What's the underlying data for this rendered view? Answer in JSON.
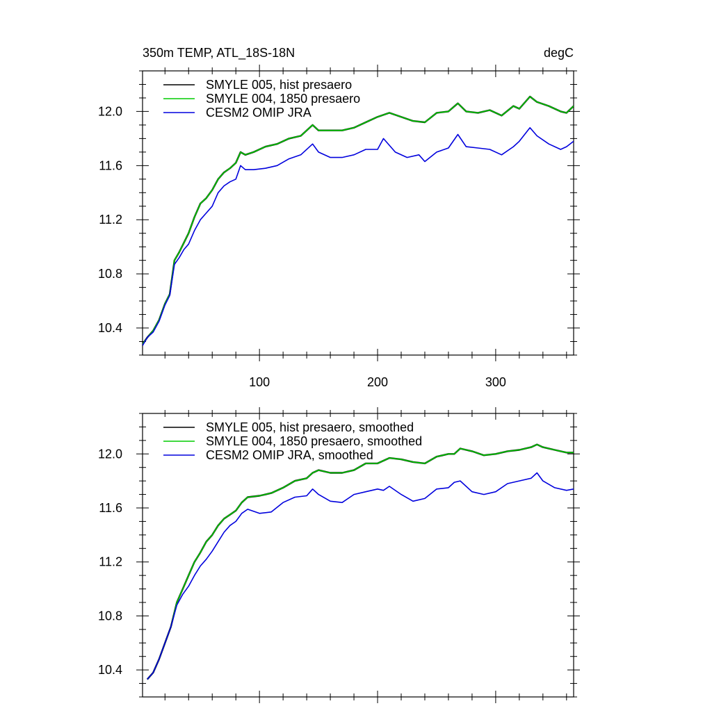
{
  "colors": {
    "smyle005": "#000000",
    "smyle004": "#00cc00",
    "omip": "#0000dd",
    "axis": "#000000"
  },
  "chart_data": [
    {
      "type": "line",
      "title": "350m TEMP, ATL_18S-18N",
      "units": "degC",
      "xlim": [
        1,
        366
      ],
      "ylim": [
        10.2,
        12.3
      ],
      "x_major_ticks": [
        100,
        200,
        300
      ],
      "x_minor_step": 20,
      "y_major_ticks": [
        10.4,
        10.8,
        11.2,
        11.6,
        12.0
      ],
      "y_tick_labels": [
        "10.4",
        "10.8",
        "11.2",
        "11.6",
        "12.0"
      ],
      "y_minor_step": 0.1,
      "x_tick_labels": [
        "100",
        "200",
        "300"
      ],
      "grid": false,
      "legend_position": "top-left",
      "series": [
        {
          "name": "SMYLE 005, hist presaero",
          "color_key": "smyle005",
          "x": [
            1,
            5,
            10,
            15,
            20,
            24,
            28,
            32,
            36,
            40,
            45,
            50,
            55,
            60,
            65,
            70,
            75,
            80,
            84,
            88,
            95,
            105,
            115,
            125,
            135,
            145,
            150,
            160,
            170,
            180,
            190,
            200,
            210,
            220,
            230,
            240,
            250,
            260,
            268,
            275,
            285,
            295,
            305,
            315,
            320,
            329,
            335,
            345,
            355,
            360,
            366
          ],
          "y": [
            10.28,
            10.33,
            10.38,
            10.46,
            10.58,
            10.65,
            10.9,
            10.96,
            11.03,
            11.1,
            11.22,
            11.32,
            11.36,
            11.42,
            11.5,
            11.55,
            11.58,
            11.62,
            11.7,
            11.68,
            11.7,
            11.74,
            11.76,
            11.8,
            11.82,
            11.9,
            11.86,
            11.86,
            11.86,
            11.88,
            11.92,
            11.96,
            11.99,
            11.96,
            11.93,
            11.92,
            11.99,
            12.0,
            12.06,
            12.0,
            11.99,
            12.01,
            11.97,
            12.04,
            12.02,
            12.11,
            12.07,
            12.04,
            12.0,
            11.99,
            12.04
          ]
        },
        {
          "name": "SMYLE 004, 1850 presaero",
          "color_key": "smyle004",
          "x": [
            1,
            5,
            10,
            15,
            20,
            24,
            28,
            32,
            36,
            40,
            45,
            50,
            55,
            60,
            65,
            70,
            75,
            80,
            84,
            88,
            95,
            105,
            115,
            125,
            135,
            145,
            150,
            160,
            170,
            180,
            190,
            200,
            210,
            220,
            230,
            240,
            250,
            260,
            268,
            275,
            285,
            295,
            305,
            315,
            320,
            329,
            335,
            345,
            355,
            360,
            366
          ],
          "y": [
            10.28,
            10.33,
            10.38,
            10.46,
            10.58,
            10.65,
            10.9,
            10.96,
            11.03,
            11.1,
            11.22,
            11.32,
            11.36,
            11.42,
            11.5,
            11.55,
            11.58,
            11.62,
            11.7,
            11.68,
            11.7,
            11.74,
            11.76,
            11.8,
            11.82,
            11.9,
            11.86,
            11.86,
            11.86,
            11.88,
            11.92,
            11.96,
            11.99,
            11.96,
            11.93,
            11.92,
            11.99,
            12.0,
            12.06,
            12.0,
            11.99,
            12.01,
            11.97,
            12.04,
            12.02,
            12.11,
            12.07,
            12.04,
            12.0,
            11.99,
            12.04
          ]
        },
        {
          "name": "CESM2 OMIP JRA",
          "color_key": "omip",
          "x": [
            1,
            5,
            10,
            15,
            20,
            24,
            28,
            32,
            36,
            40,
            45,
            50,
            55,
            60,
            65,
            70,
            75,
            80,
            84,
            88,
            95,
            105,
            115,
            125,
            135,
            145,
            150,
            160,
            170,
            180,
            190,
            200,
            205,
            215,
            225,
            235,
            240,
            250,
            260,
            268,
            275,
            285,
            295,
            305,
            315,
            320,
            329,
            335,
            345,
            355,
            360,
            366
          ],
          "y": [
            10.27,
            10.33,
            10.37,
            10.45,
            10.57,
            10.64,
            10.87,
            10.92,
            10.98,
            11.02,
            11.12,
            11.2,
            11.25,
            11.3,
            11.4,
            11.45,
            11.48,
            11.5,
            11.6,
            11.57,
            11.57,
            11.58,
            11.6,
            11.65,
            11.68,
            11.76,
            11.7,
            11.66,
            11.66,
            11.68,
            11.72,
            11.72,
            11.8,
            11.7,
            11.66,
            11.68,
            11.63,
            11.7,
            11.73,
            11.83,
            11.74,
            11.73,
            11.72,
            11.68,
            11.74,
            11.78,
            11.88,
            11.82,
            11.76,
            11.72,
            11.74,
            11.78
          ]
        }
      ]
    },
    {
      "type": "line",
      "title": "",
      "xlim": [
        1,
        366
      ],
      "ylim": [
        10.2,
        12.3
      ],
      "x_major_ticks": [
        100,
        200,
        300
      ],
      "x_minor_step": 20,
      "y_major_ticks": [
        10.4,
        10.8,
        11.2,
        11.6,
        12.0
      ],
      "y_tick_labels": [
        "10.4",
        "10.8",
        "11.2",
        "11.6",
        "12.0"
      ],
      "y_minor_step": 0.1,
      "grid": false,
      "legend_position": "top-left",
      "series": [
        {
          "name": "SMYLE 005, hist presaero, smoothed",
          "color_key": "smyle005",
          "x": [
            5,
            10,
            15,
            20,
            25,
            30,
            35,
            40,
            45,
            50,
            55,
            60,
            65,
            70,
            75,
            80,
            85,
            90,
            100,
            110,
            120,
            130,
            140,
            145,
            150,
            160,
            170,
            180,
            190,
            200,
            210,
            220,
            230,
            240,
            250,
            260,
            265,
            270,
            280,
            290,
            300,
            310,
            320,
            330,
            335,
            340,
            350,
            360,
            366
          ],
          "y": [
            10.33,
            10.38,
            10.48,
            10.6,
            10.72,
            10.9,
            11.0,
            11.1,
            11.2,
            11.27,
            11.35,
            11.4,
            11.47,
            11.52,
            11.55,
            11.58,
            11.64,
            11.68,
            11.69,
            11.71,
            11.75,
            11.8,
            11.82,
            11.86,
            11.88,
            11.86,
            11.86,
            11.88,
            11.93,
            11.93,
            11.97,
            11.96,
            11.94,
            11.93,
            11.98,
            12.0,
            12.0,
            12.04,
            12.02,
            11.99,
            12.0,
            12.02,
            12.03,
            12.05,
            12.07,
            12.05,
            12.03,
            12.01,
            12.01
          ]
        },
        {
          "name": "SMYLE 004, 1850 presaero, smoothed",
          "color_key": "smyle004",
          "x": [
            5,
            10,
            15,
            20,
            25,
            30,
            35,
            40,
            45,
            50,
            55,
            60,
            65,
            70,
            75,
            80,
            85,
            90,
            100,
            110,
            120,
            130,
            140,
            145,
            150,
            160,
            170,
            180,
            190,
            200,
            210,
            220,
            230,
            240,
            250,
            260,
            265,
            270,
            280,
            290,
            300,
            310,
            320,
            330,
            335,
            340,
            350,
            360,
            366
          ],
          "y": [
            10.33,
            10.38,
            10.48,
            10.6,
            10.72,
            10.9,
            11.0,
            11.1,
            11.2,
            11.27,
            11.35,
            11.4,
            11.47,
            11.52,
            11.55,
            11.58,
            11.64,
            11.68,
            11.69,
            11.71,
            11.75,
            11.8,
            11.82,
            11.86,
            11.88,
            11.86,
            11.86,
            11.88,
            11.93,
            11.93,
            11.97,
            11.96,
            11.94,
            11.93,
            11.98,
            12.0,
            12.0,
            12.04,
            12.02,
            11.99,
            12.0,
            12.02,
            12.03,
            12.05,
            12.07,
            12.05,
            12.03,
            12.01,
            12.01
          ]
        },
        {
          "name": "CESM2 OMIP JRA, smoothed",
          "color_key": "omip",
          "x": [
            5,
            10,
            15,
            20,
            25,
            30,
            35,
            40,
            45,
            50,
            55,
            60,
            65,
            70,
            75,
            80,
            85,
            90,
            100,
            110,
            120,
            130,
            140,
            145,
            150,
            160,
            170,
            180,
            190,
            200,
            205,
            210,
            220,
            230,
            240,
            250,
            260,
            265,
            270,
            280,
            290,
            300,
            310,
            320,
            330,
            335,
            340,
            350,
            360,
            366
          ],
          "y": [
            10.33,
            10.38,
            10.48,
            10.6,
            10.72,
            10.88,
            10.96,
            11.02,
            11.1,
            11.17,
            11.22,
            11.28,
            11.35,
            11.42,
            11.47,
            11.5,
            11.56,
            11.59,
            11.56,
            11.57,
            11.64,
            11.68,
            11.69,
            11.74,
            11.7,
            11.65,
            11.64,
            11.7,
            11.72,
            11.74,
            11.73,
            11.76,
            11.7,
            11.65,
            11.67,
            11.74,
            11.75,
            11.79,
            11.8,
            11.72,
            11.7,
            11.72,
            11.78,
            11.8,
            11.82,
            11.86,
            11.8,
            11.75,
            11.73,
            11.74
          ]
        }
      ]
    }
  ]
}
